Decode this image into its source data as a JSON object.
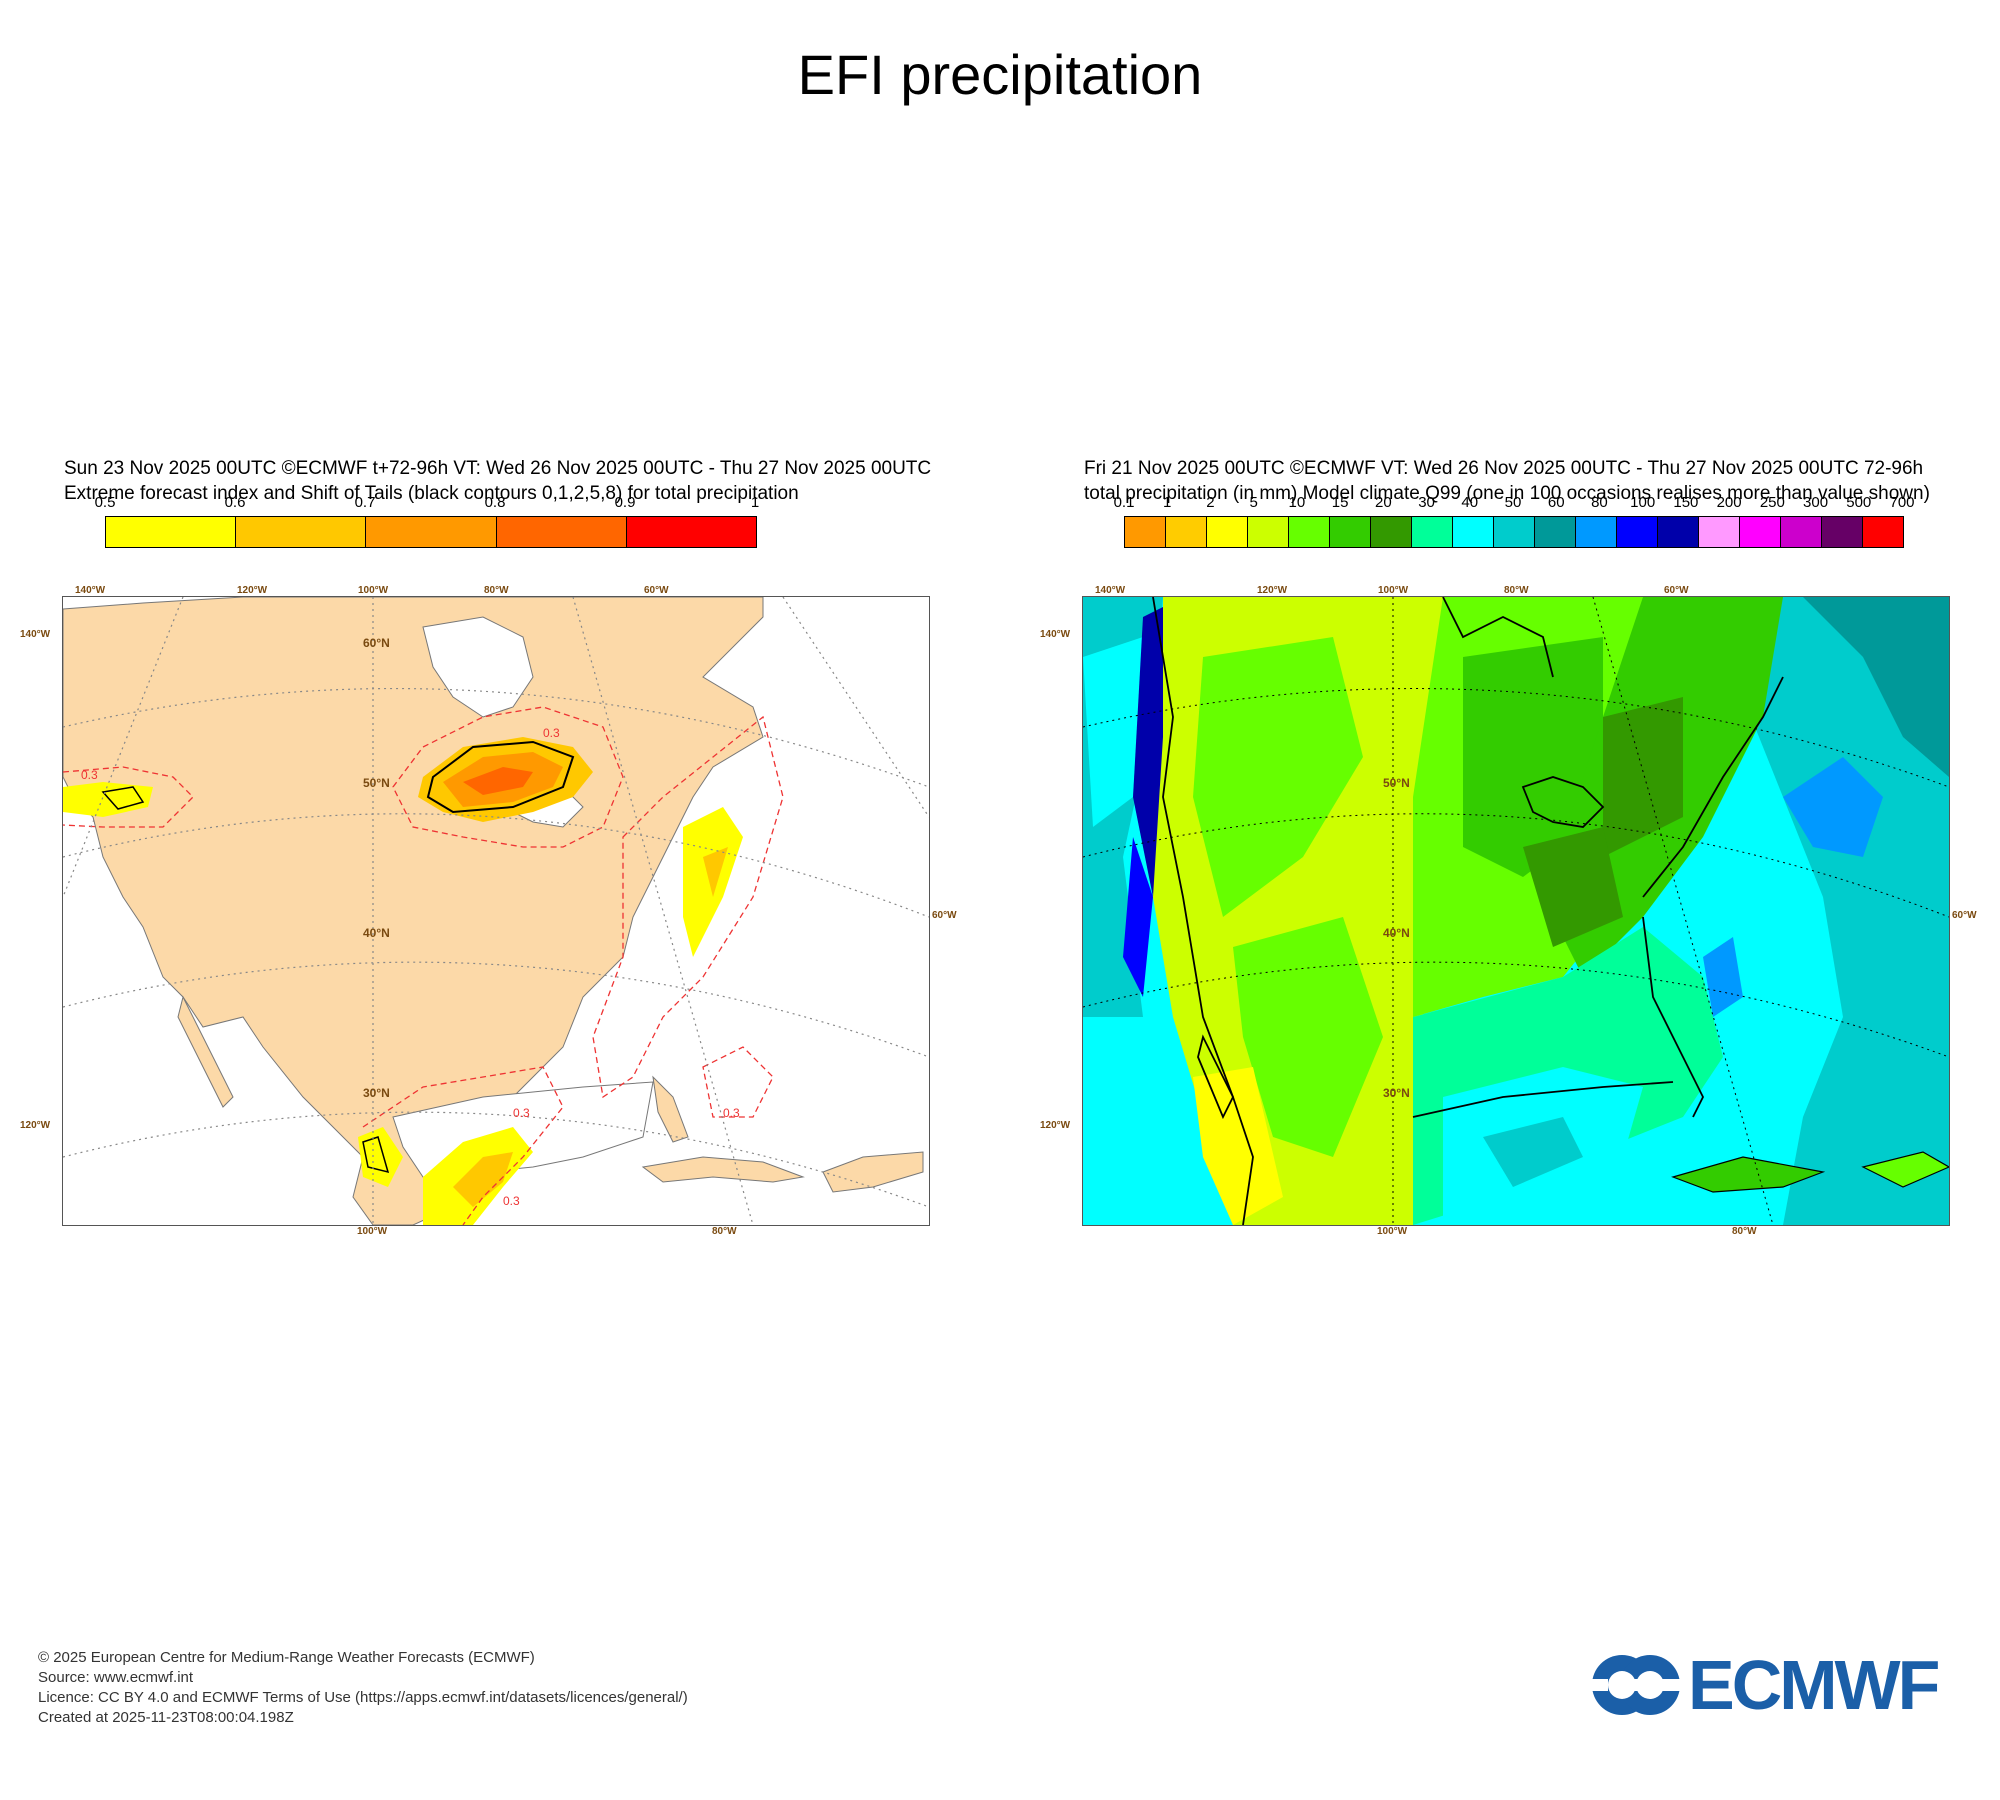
{
  "title": "EFI precipitation",
  "left_panel": {
    "header_line1": "Sun 23 Nov 2025 00UTC ©ECMWF t+72-96h  VT: Wed 26 Nov 2025 00UTC - Thu 27 Nov 2025 00UTC",
    "header_line2": "Extreme forecast index and Shift of Tails (black contours 0,1,2,5,8) for total precipitation",
    "colorbar_labels": [
      "0.5",
      "0.6",
      "0.7",
      "0.8",
      "0.9",
      "1"
    ],
    "colorbar_colors": [
      "#ffff00",
      "#ffc800",
      "#ff9900",
      "#ff6600",
      "#ff0000"
    ],
    "top_lon_labels": [
      "140°W",
      "120°W",
      "100°W",
      "80°W",
      "60°W"
    ],
    "bottom_lon_labels": [
      "100°W",
      "80°W"
    ],
    "left_lat_labels": [
      "140°W",
      "120°W"
    ],
    "right_lat_labels": [
      "60°W"
    ],
    "grid_labels": [
      "60°N",
      "50°N",
      "40°N",
      "30°N"
    ],
    "contour_labels": [
      "0.3",
      "0.3",
      "0.3",
      "0.3",
      "0.3"
    ],
    "land_color": "#fcd9a8",
    "sea_color": "#ffffff"
  },
  "right_panel": {
    "header_line1": "Fri 21 Nov 2025 00UTC ©ECMWF VT: Wed 26 Nov 2025 00UTC - Thu 27 Nov 2025 00UTC   72-96h",
    "header_line2": "total precipitation  (in mm)  Model climate Q99 (one in 100 occasions realises more than value shown)",
    "colorbar_labels": [
      "0.1",
      "1",
      "2",
      "5",
      "10",
      "15",
      "20",
      "30",
      "40",
      "50",
      "60",
      "80",
      "100",
      "150",
      "200",
      "250",
      "300",
      "500",
      "700"
    ],
    "colorbar_colors": [
      "#ff9900",
      "#ffcc00",
      "#ffff00",
      "#ccff00",
      "#66ff00",
      "#33cc00",
      "#339900",
      "#00ff99",
      "#00ffff",
      "#00cccc",
      "#009999",
      "#0099ff",
      "#0000ff",
      "#0000aa",
      "#ff99ff",
      "#ff00ff",
      "#cc00cc",
      "#660066",
      "#ff0000"
    ],
    "top_lon_labels": [
      "140°W",
      "120°W",
      "100°W",
      "80°W",
      "60°W"
    ],
    "bottom_lon_labels": [
      "100°W",
      "80°W"
    ],
    "left_lat_labels": [
      "140°W",
      "120°W"
    ],
    "right_lat_labels": [
      "60°W"
    ],
    "grid_labels": [
      "50°N",
      "40°N",
      "30°N"
    ]
  },
  "footer": {
    "line1": "© 2025 European Centre for Medium-Range Weather Forecasts (ECMWF)",
    "line2": "Source: www.ecmwf.int",
    "line3": "Licence: CC BY 4.0 and ECMWF Terms of Use (https://apps.ecmwf.int/datasets/licences/general/)",
    "line4": "Created at 2025-11-23T08:00:04.198Z"
  },
  "logo": {
    "text": "ECMWF",
    "color": "#1b5fa8"
  }
}
